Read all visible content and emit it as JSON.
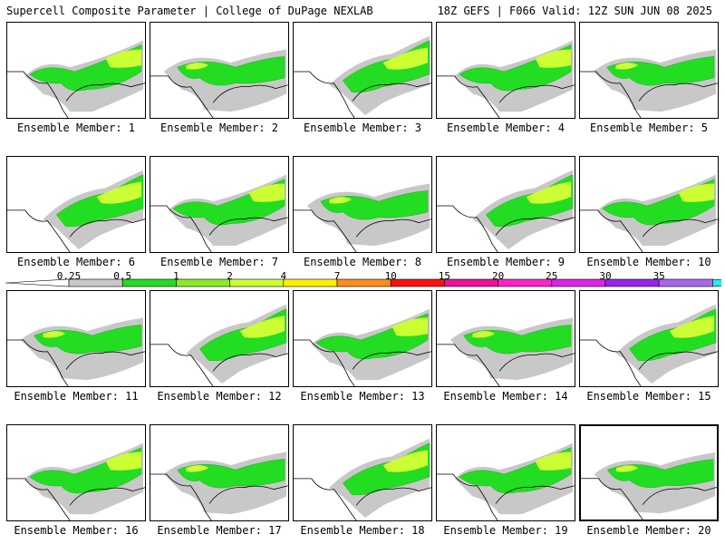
{
  "header": {
    "left": "Supercell Composite Parameter | College of DuPage NEXLAB",
    "right": "18Z GEFS | F066 Valid: 12Z SUN JUN 08 2025"
  },
  "members": [
    {
      "label": "Ensemble Member: 1"
    },
    {
      "label": "Ensemble Member: 2"
    },
    {
      "label": "Ensemble Member: 3"
    },
    {
      "label": "Ensemble Member: 4"
    },
    {
      "label": "Ensemble Member: 5"
    },
    {
      "label": "Ensemble Member: 6"
    },
    {
      "label": "Ensemble Member: 7"
    },
    {
      "label": "Ensemble Member: 8"
    },
    {
      "label": "Ensemble Member: 9"
    },
    {
      "label": "Ensemble Member: 10"
    },
    {
      "label": "Ensemble Member: 11"
    },
    {
      "label": "Ensemble Member: 12"
    },
    {
      "label": "Ensemble Member: 13"
    },
    {
      "label": "Ensemble Member: 14"
    },
    {
      "label": "Ensemble Member: 15"
    },
    {
      "label": "Ensemble Member: 16"
    },
    {
      "label": "Ensemble Member: 17"
    },
    {
      "label": "Ensemble Member: 18"
    },
    {
      "label": "Ensemble Member: 19"
    },
    {
      "label": "Ensemble Member: 20",
      "selected": true
    }
  ],
  "colorbar": {
    "labels": [
      "0.25",
      "0.5",
      "1",
      "2",
      "4",
      "7",
      "10",
      "15",
      "20",
      "25",
      "30",
      "35"
    ],
    "colors": [
      "#c8c8c8",
      "#22dd22",
      "#88ee22",
      "#ccff33",
      "#ffee00",
      "#ff8c1a",
      "#ff1010",
      "#ee1199",
      "#ff22cc",
      "#dd22ee",
      "#9922ee",
      "#aa66ee",
      "#22eeee"
    ]
  }
}
